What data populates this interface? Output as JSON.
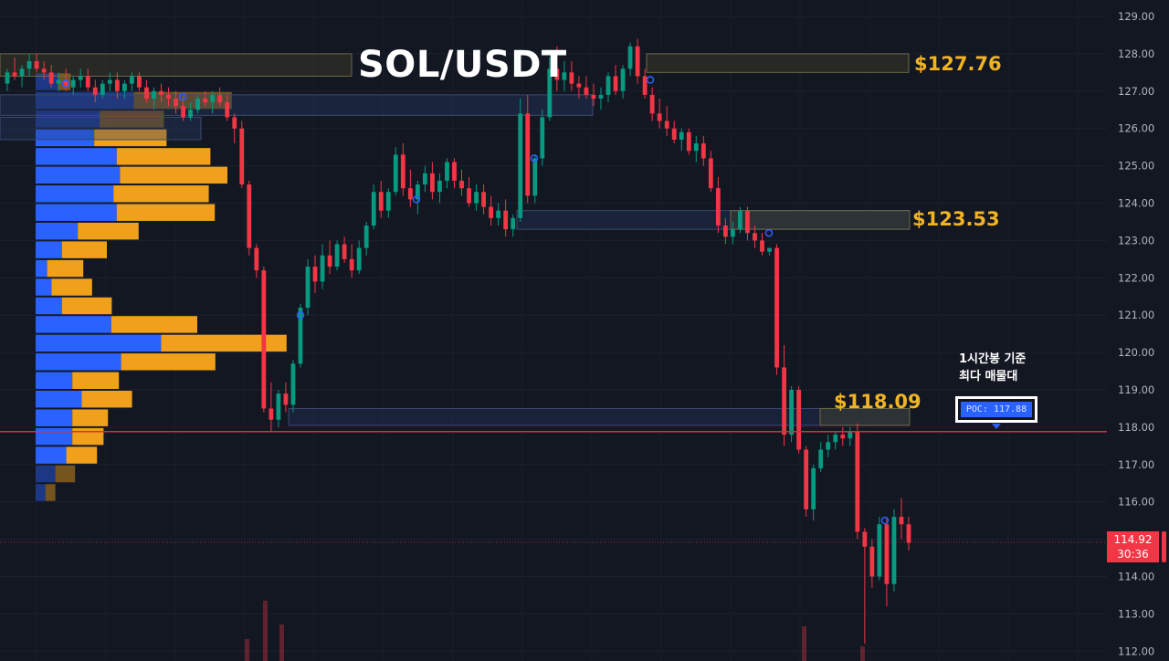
{
  "title": "SOL/USDT",
  "levels": [
    "$127.76",
    "$123.53",
    "$118.09"
  ],
  "annotation": [
    "1시간봉 기준",
    "최다 매물대"
  ],
  "poc_label": "POC: 117.88",
  "current_price": "114.92",
  "countdown": "30:36",
  "colors": {
    "background": "#131722",
    "up": "#089981",
    "down": "#f23645",
    "profile_buy": "#2962ff",
    "profile_sell": "#f0a01a",
    "level_text": "#f0b323",
    "poc_line": "#e5283a"
  },
  "chart_data": {
    "type": "candlestick",
    "title": "SOL/USDT",
    "y_axis": {
      "ticks": [
        "129.00",
        "128.00",
        "127.00",
        "126.00",
        "125.00",
        "124.00",
        "123.00",
        "122.00",
        "121.00",
        "120.00",
        "119.00",
        "118.00",
        "117.00",
        "116.00",
        "115.00",
        "114.00",
        "113.00",
        "112.00"
      ],
      "range": [
        111.8,
        129.3
      ]
    },
    "poc": 117.88,
    "last_price": 114.92,
    "levels": [
      127.76,
      123.53,
      118.09
    ],
    "volume_profile": {
      "bin_size": 0.5,
      "bins": [
        {
          "price": 127.25,
          "buy": 0.41,
          "sell": 0.23,
          "faded": true
        },
        {
          "price": 126.75,
          "buy": 1.79,
          "sell": 1.79,
          "faded": true
        },
        {
          "price": 126.25,
          "buy": 1.17,
          "sell": 1.17,
          "faded": true
        },
        {
          "price": 125.75,
          "buy": 1.07,
          "sell": 1.32
        },
        {
          "price": 125.25,
          "buy": 1.48,
          "sell": 1.71
        },
        {
          "price": 124.75,
          "buy": 1.54,
          "sell": 1.96
        },
        {
          "price": 124.25,
          "buy": 1.42,
          "sell": 1.74
        },
        {
          "price": 123.75,
          "buy": 1.48,
          "sell": 1.79
        },
        {
          "price": 123.25,
          "buy": 0.77,
          "sell": 1.11
        },
        {
          "price": 122.75,
          "buy": 0.48,
          "sell": 0.82
        },
        {
          "price": 122.25,
          "buy": 0.21,
          "sell": 0.66
        },
        {
          "price": 121.75,
          "buy": 0.29,
          "sell": 0.74
        },
        {
          "price": 121.25,
          "buy": 0.48,
          "sell": 0.91
        },
        {
          "price": 120.75,
          "buy": 1.38,
          "sell": 1.57
        },
        {
          "price": 120.25,
          "buy": 2.29,
          "sell": 2.29
        },
        {
          "price": 119.75,
          "buy": 1.56,
          "sell": 1.72
        },
        {
          "price": 119.25,
          "buy": 0.67,
          "sell": 0.85
        },
        {
          "price": 118.75,
          "buy": 0.84,
          "sell": 0.92
        },
        {
          "price": 118.25,
          "buy": 0.67,
          "sell": 0.65
        },
        {
          "price": 117.75,
          "buy": 0.67,
          "sell": 0.57
        },
        {
          "price": 117.25,
          "buy": 0.56,
          "sell": 0.56
        },
        {
          "price": 116.75,
          "buy": 0.36,
          "sell": 0.36,
          "faded": true
        },
        {
          "price": 116.25,
          "buy": 0.18,
          "sell": 0.18,
          "faded": true
        }
      ]
    },
    "ohlc": [
      [
        127.2,
        127.6,
        127.0,
        127.5
      ],
      [
        127.5,
        127.9,
        127.3,
        127.4
      ],
      [
        127.4,
        127.7,
        127.1,
        127.6
      ],
      [
        127.6,
        128.0,
        127.4,
        127.8
      ],
      [
        127.8,
        128.0,
        127.5,
        127.6
      ],
      [
        127.6,
        127.8,
        127.3,
        127.5
      ],
      [
        127.5,
        127.7,
        127.1,
        127.2
      ],
      [
        127.2,
        127.5,
        127.0,
        127.3
      ],
      [
        127.3,
        127.6,
        127.0,
        127.1
      ],
      [
        127.1,
        127.4,
        126.9,
        127.3
      ],
      [
        127.3,
        127.6,
        127.1,
        127.4
      ],
      [
        127.4,
        127.6,
        127.0,
        127.1
      ],
      [
        127.1,
        127.3,
        126.7,
        126.9
      ],
      [
        126.9,
        127.3,
        126.8,
        127.2
      ],
      [
        127.2,
        127.5,
        127.0,
        127.3
      ],
      [
        127.3,
        127.5,
        126.8,
        127.0
      ],
      [
        127.0,
        127.3,
        126.8,
        127.2
      ],
      [
        127.2,
        127.5,
        127.0,
        127.4
      ],
      [
        127.4,
        127.5,
        127.0,
        127.1
      ],
      [
        127.1,
        127.3,
        126.7,
        126.8
      ],
      [
        126.8,
        127.1,
        126.5,
        127.0
      ],
      [
        127.0,
        127.2,
        126.7,
        126.9
      ],
      [
        126.9,
        127.1,
        126.6,
        126.8
      ],
      [
        126.8,
        127.0,
        126.4,
        126.6
      ],
      [
        126.6,
        126.9,
        126.2,
        126.3
      ],
      [
        126.3,
        126.7,
        126.2,
        126.5
      ],
      [
        126.5,
        126.9,
        126.4,
        126.8
      ],
      [
        126.8,
        127.0,
        126.6,
        126.7
      ],
      [
        126.7,
        127.0,
        126.4,
        126.9
      ],
      [
        126.9,
        127.1,
        126.6,
        126.7
      ],
      [
        126.7,
        126.9,
        126.2,
        126.3
      ],
      [
        126.3,
        126.4,
        125.6,
        126.0
      ],
      [
        126.0,
        126.2,
        124.4,
        124.5
      ],
      [
        124.5,
        124.6,
        122.6,
        122.8
      ],
      [
        122.8,
        122.9,
        122.0,
        122.2
      ],
      [
        122.2,
        122.3,
        118.4,
        118.5
      ],
      [
        118.5,
        119.2,
        117.9,
        118.2
      ],
      [
        118.2,
        119.0,
        118.0,
        118.9
      ],
      [
        118.9,
        119.2,
        118.4,
        118.6
      ],
      [
        118.6,
        119.8,
        118.4,
        119.7
      ],
      [
        119.7,
        121.3,
        119.6,
        121.2
      ],
      [
        121.2,
        122.5,
        121.0,
        122.3
      ],
      [
        122.3,
        122.6,
        121.6,
        121.9
      ],
      [
        121.9,
        122.9,
        121.7,
        122.6
      ],
      [
        122.6,
        123.0,
        122.1,
        122.3
      ],
      [
        122.3,
        123.0,
        122.2,
        122.9
      ],
      [
        122.9,
        123.1,
        122.4,
        122.5
      ],
      [
        122.5,
        122.9,
        122.0,
        122.2
      ],
      [
        122.2,
        123.0,
        122.1,
        122.8
      ],
      [
        122.8,
        123.5,
        122.6,
        123.4
      ],
      [
        123.4,
        124.5,
        123.3,
        124.3
      ],
      [
        124.3,
        124.6,
        123.6,
        123.8
      ],
      [
        123.8,
        124.4,
        123.6,
        124.3
      ],
      [
        124.3,
        125.5,
        124.2,
        125.3
      ],
      [
        125.3,
        125.6,
        124.2,
        124.4
      ],
      [
        124.4,
        124.9,
        123.9,
        124.1
      ],
      [
        124.1,
        124.6,
        123.7,
        124.5
      ],
      [
        124.5,
        125.0,
        124.3,
        124.8
      ],
      [
        124.8,
        125.1,
        124.1,
        124.3
      ],
      [
        124.3,
        124.8,
        124.0,
        124.6
      ],
      [
        124.6,
        125.2,
        124.4,
        125.1
      ],
      [
        125.1,
        125.2,
        124.4,
        124.6
      ],
      [
        124.6,
        124.9,
        124.2,
        124.4
      ],
      [
        124.4,
        124.7,
        123.9,
        124.0
      ],
      [
        124.0,
        124.5,
        123.8,
        124.3
      ],
      [
        124.3,
        124.5,
        123.7,
        123.9
      ],
      [
        123.9,
        124.2,
        123.4,
        123.6
      ],
      [
        123.6,
        124.0,
        123.4,
        123.8
      ],
      [
        123.8,
        124.1,
        123.1,
        123.3
      ],
      [
        123.3,
        123.7,
        123.1,
        123.6
      ],
      [
        123.6,
        126.8,
        123.5,
        126.4
      ],
      [
        126.4,
        126.9,
        124.0,
        124.2
      ],
      [
        124.2,
        125.3,
        124.0,
        125.2
      ],
      [
        125.2,
        126.5,
        125.0,
        126.3
      ],
      [
        126.3,
        127.9,
        126.2,
        127.6
      ],
      [
        127.6,
        128.2,
        127.0,
        127.3
      ],
      [
        127.3,
        127.8,
        127.0,
        127.5
      ],
      [
        127.5,
        127.8,
        127.0,
        127.2
      ],
      [
        127.2,
        127.4,
        126.8,
        127.1
      ],
      [
        127.1,
        127.4,
        126.8,
        126.9
      ],
      [
        126.9,
        127.2,
        126.6,
        126.8
      ],
      [
        126.8,
        127.1,
        126.5,
        126.9
      ],
      [
        126.9,
        127.5,
        126.7,
        127.4
      ],
      [
        127.4,
        127.7,
        126.9,
        127.0
      ],
      [
        127.0,
        127.7,
        126.8,
        127.6
      ],
      [
        127.6,
        128.3,
        127.4,
        128.2
      ],
      [
        128.2,
        128.4,
        127.2,
        127.4
      ],
      [
        127.4,
        127.6,
        126.8,
        126.9
      ],
      [
        126.9,
        127.1,
        126.2,
        126.4
      ],
      [
        126.4,
        126.8,
        126.0,
        126.2
      ],
      [
        126.2,
        126.6,
        125.8,
        126.0
      ],
      [
        126.0,
        126.2,
        125.6,
        125.7
      ],
      [
        125.7,
        126.0,
        125.4,
        125.9
      ],
      [
        125.9,
        126.0,
        125.3,
        125.4
      ],
      [
        125.4,
        125.8,
        125.1,
        125.6
      ],
      [
        125.6,
        125.8,
        125.0,
        125.2
      ],
      [
        125.2,
        125.4,
        124.3,
        124.4
      ],
      [
        124.4,
        124.7,
        123.2,
        123.4
      ],
      [
        123.4,
        123.6,
        122.9,
        123.1
      ],
      [
        123.1,
        123.5,
        122.9,
        123.3
      ],
      [
        123.3,
        123.9,
        123.2,
        123.8
      ],
      [
        123.8,
        123.9,
        123.0,
        123.2
      ],
      [
        123.2,
        123.4,
        122.8,
        123.0
      ],
      [
        123.0,
        123.2,
        122.6,
        122.7
      ],
      [
        122.7,
        122.8,
        122.6,
        122.8
      ],
      [
        122.8,
        122.9,
        119.4,
        119.6
      ],
      [
        119.6,
        120.2,
        117.5,
        117.8
      ],
      [
        117.8,
        119.1,
        117.6,
        119.0
      ],
      [
        119.0,
        119.1,
        117.3,
        117.4
      ],
      [
        117.4,
        117.5,
        115.6,
        115.8
      ],
      [
        115.8,
        117.0,
        115.5,
        116.9
      ],
      [
        116.9,
        117.6,
        116.8,
        117.4
      ],
      [
        117.4,
        117.8,
        117.2,
        117.6
      ],
      [
        117.6,
        117.9,
        117.4,
        117.8
      ],
      [
        117.8,
        118.0,
        117.5,
        117.7
      ],
      [
        117.7,
        118.0,
        117.5,
        117.9
      ],
      [
        117.9,
        118.1,
        115.0,
        115.2
      ],
      [
        115.2,
        115.3,
        112.2,
        114.8
      ],
      [
        114.8,
        115.0,
        113.7,
        114.0
      ],
      [
        114.0,
        115.6,
        113.9,
        115.4
      ],
      [
        115.4,
        115.6,
        113.2,
        113.8
      ],
      [
        113.8,
        115.8,
        113.6,
        115.6
      ],
      [
        115.6,
        116.1,
        115.0,
        115.4
      ],
      [
        115.4,
        115.6,
        114.7,
        114.9
      ]
    ]
  }
}
